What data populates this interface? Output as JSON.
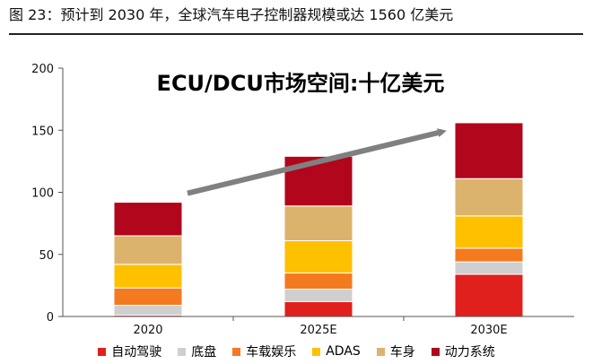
{
  "figure": {
    "title": "图 23：预计到 2030 年，全球汽车电子控制器规模或达 1560 亿美元"
  },
  "chart_data": {
    "type": "bar",
    "stacked": true,
    "title": "ECU/DCU市场空间:十亿美元",
    "categories": [
      "2020",
      "2025E",
      "2030E"
    ],
    "ylim": [
      0,
      200
    ],
    "yticks": [
      0,
      50,
      100,
      150,
      200
    ],
    "legend_position": "bottom",
    "grid": false,
    "series": [
      {
        "name": "自动驾驶",
        "color": "#e0201d",
        "values": [
          1,
          12,
          34
        ]
      },
      {
        "name": "底盘",
        "color": "#cfcfcf",
        "values": [
          8,
          10,
          10
        ]
      },
      {
        "name": "车载娱乐",
        "color": "#f47a1f",
        "values": [
          14,
          13,
          11
        ]
      },
      {
        "name": "ADAS",
        "color": "#ffc000",
        "values": [
          19,
          26,
          26
        ]
      },
      {
        "name": "车身",
        "color": "#dcb36c",
        "values": [
          23,
          28,
          30
        ]
      },
      {
        "name": "动力系统",
        "color": "#b2061c",
        "values": [
          27,
          40,
          45
        ]
      }
    ],
    "annotation": {
      "type": "trend-arrow",
      "color": "#808080"
    }
  }
}
